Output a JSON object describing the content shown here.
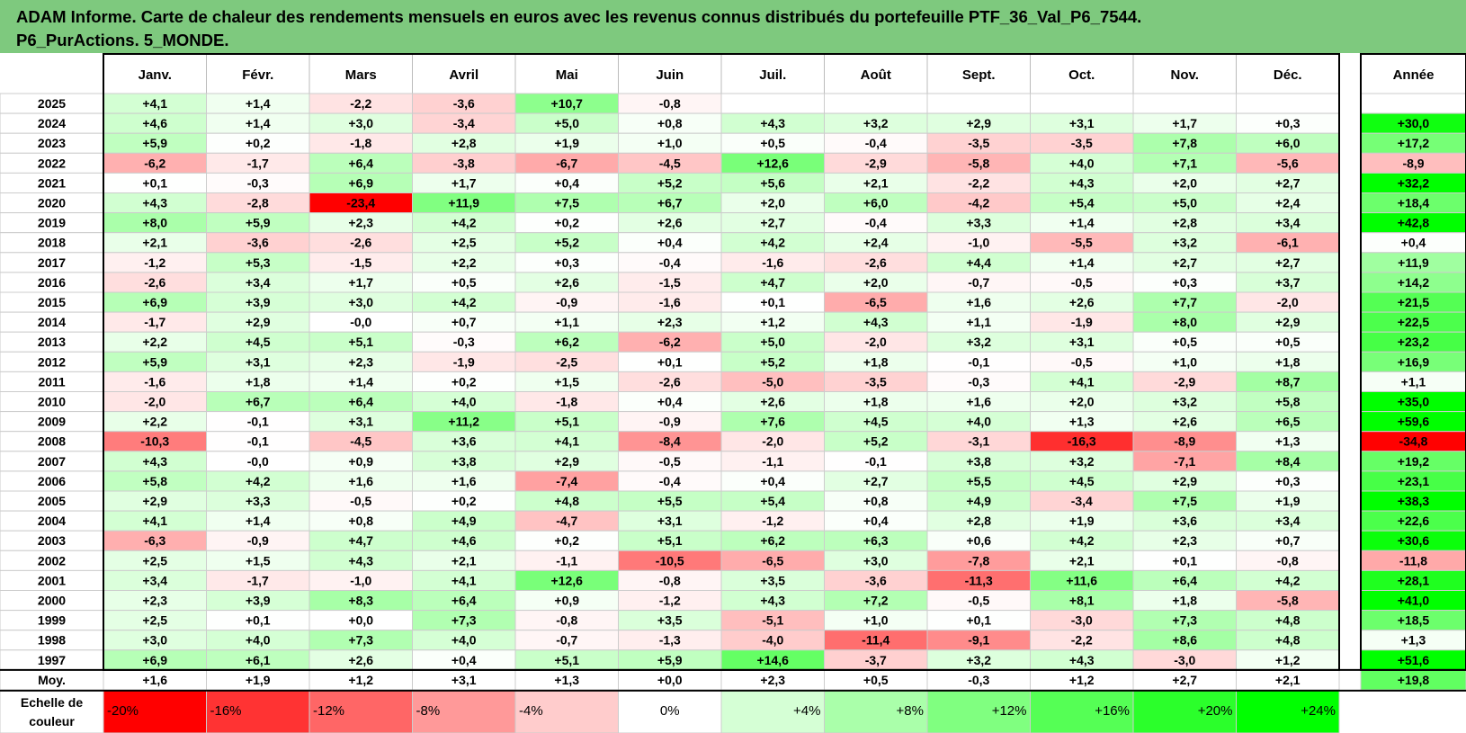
{
  "title_line1": "ADAM Informe. Carte de chaleur des rendements mensuels en euros avec les revenus connus distribués du portefeuille PTF_36_Val_P6_7544.",
  "title_line2": "P6_PurActions. 5_MONDE.",
  "chart_data": {
    "type": "heatmap",
    "title": "ADAM Informe. Carte de chaleur des rendements mensuels en euros avec les revenus connus distribués du portefeuille PTF_36_Val_P6_7544. P6_PurActions. 5_MONDE.",
    "columns": [
      "Janv.",
      "Févr.",
      "Mars",
      "Avril",
      "Mai",
      "Juin",
      "Juil.",
      "Août",
      "Sept.",
      "Oct.",
      "Nov.",
      "Déc."
    ],
    "year_column_label": "Année",
    "average_row_label": "Moy.",
    "rows": [
      {
        "year": "2025",
        "months": [
          "+4,1",
          "+1,4",
          "-2,2",
          "-3,6",
          "+10,7",
          "-0,8",
          "",
          "",
          "",
          "",
          "",
          ""
        ],
        "annual": ""
      },
      {
        "year": "2024",
        "months": [
          "+4,6",
          "+1,4",
          "+3,0",
          "-3,4",
          "+5,0",
          "+0,8",
          "+4,3",
          "+3,2",
          "+2,9",
          "+3,1",
          "+1,7",
          "+0,3"
        ],
        "annual": "+30,0"
      },
      {
        "year": "2023",
        "months": [
          "+5,9",
          "+0,2",
          "-1,8",
          "+2,8",
          "+1,9",
          "+1,0",
          "+0,5",
          "-0,4",
          "-3,5",
          "-3,5",
          "+7,8",
          "+6,0"
        ],
        "annual": "+17,2"
      },
      {
        "year": "2022",
        "months": [
          "-6,2",
          "-1,7",
          "+6,4",
          "-3,8",
          "-6,7",
          "-4,5",
          "+12,6",
          "-2,9",
          "-5,8",
          "+4,0",
          "+7,1",
          "-5,6"
        ],
        "annual": "-8,9"
      },
      {
        "year": "2021",
        "months": [
          "+0,1",
          "-0,3",
          "+6,9",
          "+1,7",
          "+0,4",
          "+5,2",
          "+5,6",
          "+2,1",
          "-2,2",
          "+4,3",
          "+2,0",
          "+2,7"
        ],
        "annual": "+32,2"
      },
      {
        "year": "2020",
        "months": [
          "+4,3",
          "-2,8",
          "-23,4",
          "+11,9",
          "+7,5",
          "+6,7",
          "+2,0",
          "+6,0",
          "-4,2",
          "+5,4",
          "+5,0",
          "+2,4"
        ],
        "annual": "+18,4"
      },
      {
        "year": "2019",
        "months": [
          "+8,0",
          "+5,9",
          "+2,3",
          "+4,2",
          "+0,2",
          "+2,6",
          "+2,7",
          "-0,4",
          "+3,3",
          "+1,4",
          "+2,8",
          "+3,4"
        ],
        "annual": "+42,8"
      },
      {
        "year": "2018",
        "months": [
          "+2,1",
          "-3,6",
          "-2,6",
          "+2,5",
          "+5,2",
          "+0,4",
          "+4,2",
          "+2,4",
          "-1,0",
          "-5,5",
          "+3,2",
          "-6,1"
        ],
        "annual": "+0,4"
      },
      {
        "year": "2017",
        "months": [
          "-1,2",
          "+5,3",
          "-1,5",
          "+2,2",
          "+0,3",
          "-0,4",
          "-1,6",
          "-2,6",
          "+4,4",
          "+1,4",
          "+2,7",
          "+2,7"
        ],
        "annual": "+11,9"
      },
      {
        "year": "2016",
        "months": [
          "-2,6",
          "+3,4",
          "+1,7",
          "+0,5",
          "+2,6",
          "-1,5",
          "+4,7",
          "+2,0",
          "-0,7",
          "-0,5",
          "+0,3",
          "+3,7"
        ],
        "annual": "+14,2"
      },
      {
        "year": "2015",
        "months": [
          "+6,9",
          "+3,9",
          "+3,0",
          "+4,2",
          "-0,9",
          "-1,6",
          "+0,1",
          "-6,5",
          "+1,6",
          "+2,6",
          "+7,7",
          "-2,0"
        ],
        "annual": "+21,5"
      },
      {
        "year": "2014",
        "months": [
          "-1,7",
          "+2,9",
          "-0,0",
          "+0,7",
          "+1,1",
          "+2,3",
          "+1,2",
          "+4,3",
          "+1,1",
          "-1,9",
          "+8,0",
          "+2,9"
        ],
        "annual": "+22,5"
      },
      {
        "year": "2013",
        "months": [
          "+2,2",
          "+4,5",
          "+5,1",
          "-0,3",
          "+6,2",
          "-6,2",
          "+5,0",
          "-2,0",
          "+3,2",
          "+3,1",
          "+0,5",
          "+0,5"
        ],
        "annual": "+23,2"
      },
      {
        "year": "2012",
        "months": [
          "+5,9",
          "+3,1",
          "+2,3",
          "-1,9",
          "-2,5",
          "+0,1",
          "+5,2",
          "+1,8",
          "-0,1",
          "-0,5",
          "+1,0",
          "+1,8"
        ],
        "annual": "+16,9"
      },
      {
        "year": "2011",
        "months": [
          "-1,6",
          "+1,8",
          "+1,4",
          "+0,2",
          "+1,5",
          "-2,6",
          "-5,0",
          "-3,5",
          "-0,3",
          "+4,1",
          "-2,9",
          "+8,7"
        ],
        "annual": "+1,1"
      },
      {
        "year": "2010",
        "months": [
          "-2,0",
          "+6,7",
          "+6,4",
          "+4,0",
          "-1,8",
          "+0,4",
          "+2,6",
          "+1,8",
          "+1,6",
          "+2,0",
          "+3,2",
          "+5,8"
        ],
        "annual": "+35,0"
      },
      {
        "year": "2009",
        "months": [
          "+2,2",
          "-0,1",
          "+3,1",
          "+11,2",
          "+5,1",
          "-0,9",
          "+7,6",
          "+4,5",
          "+4,0",
          "+1,3",
          "+2,6",
          "+6,5"
        ],
        "annual": "+59,6"
      },
      {
        "year": "2008",
        "months": [
          "-10,3",
          "-0,1",
          "-4,5",
          "+3,6",
          "+4,1",
          "-8,4",
          "-2,0",
          "+5,2",
          "-3,1",
          "-16,3",
          "-8,9",
          "+1,3"
        ],
        "annual": "-34,8"
      },
      {
        "year": "2007",
        "months": [
          "+4,3",
          "-0,0",
          "+0,9",
          "+3,8",
          "+2,9",
          "-0,5",
          "-1,1",
          "-0,1",
          "+3,8",
          "+3,2",
          "-7,1",
          "+8,4"
        ],
        "annual": "+19,2"
      },
      {
        "year": "2006",
        "months": [
          "+5,8",
          "+4,2",
          "+1,6",
          "+1,6",
          "-7,4",
          "-0,4",
          "+0,4",
          "+2,7",
          "+5,5",
          "+4,5",
          "+2,9",
          "+0,3"
        ],
        "annual": "+23,1"
      },
      {
        "year": "2005",
        "months": [
          "+2,9",
          "+3,3",
          "-0,5",
          "+0,2",
          "+4,8",
          "+5,5",
          "+5,4",
          "+0,8",
          "+4,9",
          "-3,4",
          "+7,5",
          "+1,9"
        ],
        "annual": "+38,3"
      },
      {
        "year": "2004",
        "months": [
          "+4,1",
          "+1,4",
          "+0,8",
          "+4,9",
          "-4,7",
          "+3,1",
          "-1,2",
          "+0,4",
          "+2,8",
          "+1,9",
          "+3,6",
          "+3,4"
        ],
        "annual": "+22,6"
      },
      {
        "year": "2003",
        "months": [
          "-6,3",
          "-0,9",
          "+4,7",
          "+4,6",
          "+0,2",
          "+5,1",
          "+6,2",
          "+6,3",
          "+0,6",
          "+4,2",
          "+2,3",
          "+0,7"
        ],
        "annual": "+30,6"
      },
      {
        "year": "2002",
        "months": [
          "+2,5",
          "+1,5",
          "+4,3",
          "+2,1",
          "-1,1",
          "-10,5",
          "-6,5",
          "+3,0",
          "-7,8",
          "+2,1",
          "+0,1",
          "-0,8"
        ],
        "annual": "-11,8"
      },
      {
        "year": "2001",
        "months": [
          "+3,4",
          "-1,7",
          "-1,0",
          "+4,1",
          "+12,6",
          "-0,8",
          "+3,5",
          "-3,6",
          "-11,3",
          "+11,6",
          "+6,4",
          "+4,2"
        ],
        "annual": "+28,1"
      },
      {
        "year": "2000",
        "months": [
          "+2,3",
          "+3,9",
          "+8,3",
          "+6,4",
          "+0,9",
          "-1,2",
          "+4,3",
          "+7,2",
          "-0,5",
          "+8,1",
          "+1,8",
          "-5,8"
        ],
        "annual": "+41,0"
      },
      {
        "year": "1999",
        "months": [
          "+2,5",
          "+0,1",
          "+0,0",
          "+7,3",
          "-0,8",
          "+3,5",
          "-5,1",
          "+1,0",
          "+0,1",
          "-3,0",
          "+7,3",
          "+4,8"
        ],
        "annual": "+18,5"
      },
      {
        "year": "1998",
        "months": [
          "+3,0",
          "+4,0",
          "+7,3",
          "+4,0",
          "-0,7",
          "-1,3",
          "-4,0",
          "-11,4",
          "-9,1",
          "-2,2",
          "+8,6",
          "+4,8"
        ],
        "annual": "+1,3"
      },
      {
        "year": "1997",
        "months": [
          "+6,9",
          "+6,1",
          "+2,6",
          "+0,4",
          "+5,1",
          "+5,9",
          "+14,6",
          "-3,7",
          "+3,2",
          "+4,3",
          "-3,0",
          "+1,2"
        ],
        "annual": "+51,6"
      }
    ],
    "average": {
      "months": [
        "+1,6",
        "+1,9",
        "+1,2",
        "+3,1",
        "+1,3",
        "+0,0",
        "+2,3",
        "+0,5",
        "-0,3",
        "+1,2",
        "+2,7",
        "+2,1"
      ],
      "annual": "+19,8"
    },
    "color_scale": {
      "label_line1": "Echelle de",
      "label_line2": "couleur",
      "ticks": [
        "-20%",
        "-16%",
        "-12%",
        "-8%",
        "-4%",
        "0%",
        "+4%",
        "+8%",
        "+12%",
        "+16%",
        "+20%",
        "+24%"
      ]
    }
  }
}
